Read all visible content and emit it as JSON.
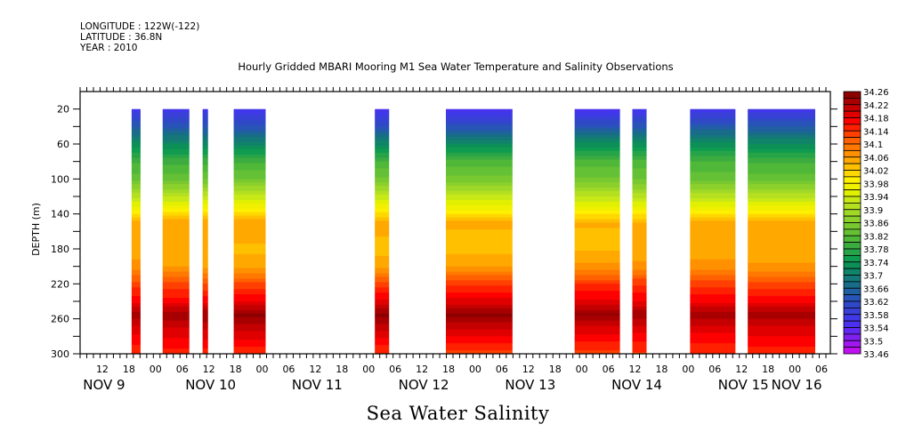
{
  "header": {
    "longitude": "LONGITUDE : 122W(-122)",
    "latitude": "LATITUDE : 36.8N",
    "year": "YEAR : 2010"
  },
  "chart_data": {
    "type": "heatmap",
    "title": "Hourly Gridded MBARI Mooring M1 Sea Water Temperature and Salinity Observations",
    "xlabel": "Sea Water Salinity",
    "ylabel": "DEPTH (m)",
    "x_unit": "hours since Nov 9 2010 00:00",
    "xlim": [
      7,
      176
    ],
    "ylim": [
      300,
      0
    ],
    "y_ticks": [
      20,
      60,
      100,
      140,
      180,
      220,
      260,
      300
    ],
    "x_hour_ticks": [
      {
        "hour": 12,
        "label": "12"
      },
      {
        "hour": 18,
        "label": "18"
      },
      {
        "hour": 24,
        "label": "00"
      },
      {
        "hour": 30,
        "label": "06"
      },
      {
        "hour": 36,
        "label": "12"
      },
      {
        "hour": 42,
        "label": "18"
      },
      {
        "hour": 48,
        "label": "00"
      },
      {
        "hour": 54,
        "label": "06"
      },
      {
        "hour": 60,
        "label": "12"
      },
      {
        "hour": 66,
        "label": "18"
      },
      {
        "hour": 72,
        "label": "00"
      },
      {
        "hour": 78,
        "label": "06"
      },
      {
        "hour": 84,
        "label": "12"
      },
      {
        "hour": 90,
        "label": "18"
      },
      {
        "hour": 96,
        "label": "00"
      },
      {
        "hour": 102,
        "label": "06"
      },
      {
        "hour": 108,
        "label": "12"
      },
      {
        "hour": 114,
        "label": "18"
      },
      {
        "hour": 120,
        "label": "00"
      },
      {
        "hour": 126,
        "label": "06"
      },
      {
        "hour": 132,
        "label": "12"
      },
      {
        "hour": 138,
        "label": "18"
      },
      {
        "hour": 144,
        "label": "00"
      },
      {
        "hour": 150,
        "label": "06"
      },
      {
        "hour": 156,
        "label": "12"
      },
      {
        "hour": 162,
        "label": "18"
      },
      {
        "hour": 168,
        "label": "00"
      },
      {
        "hour": 174,
        "label": "06"
      }
    ],
    "x_day_labels": [
      {
        "hour": 12,
        "label": "NOV  9"
      },
      {
        "hour": 36,
        "label": "NOV 10"
      },
      {
        "hour": 60,
        "label": "NOV 11"
      },
      {
        "hour": 84,
        "label": "NOV 12"
      },
      {
        "hour": 108,
        "label": "NOV 13"
      },
      {
        "hour": 132,
        "label": "NOV 14"
      },
      {
        "hour": 156,
        "label": "NOV 15"
      },
      {
        "hour": 168,
        "label": "NOV 16"
      }
    ],
    "data_depth_range": [
      20,
      300
    ],
    "observation_periods": [
      {
        "start_hour": 18.6,
        "end_hour": 20.6
      },
      {
        "start_hour": 25.6,
        "end_hour": 31.6
      },
      {
        "start_hour": 34.6,
        "end_hour": 35.8
      },
      {
        "start_hour": 41.6,
        "end_hour": 48.8
      },
      {
        "start_hour": 73.4,
        "end_hour": 76.6
      },
      {
        "start_hour": 89.4,
        "end_hour": 104.4
      },
      {
        "start_hour": 118.4,
        "end_hour": 128.6
      },
      {
        "start_hour": 131.4,
        "end_hour": 134.6
      },
      {
        "start_hour": 144.4,
        "end_hour": 154.6
      },
      {
        "start_hour": 157.4,
        "end_hour": 172.6
      }
    ],
    "salinity_profile": [
      {
        "depth": 20,
        "value": 33.56
      },
      {
        "depth": 40,
        "value": 33.63
      },
      {
        "depth": 60,
        "value": 33.72
      },
      {
        "depth": 80,
        "value": 33.8
      },
      {
        "depth": 100,
        "value": 33.84
      },
      {
        "depth": 120,
        "value": 33.92
      },
      {
        "depth": 135,
        "value": 33.98
      },
      {
        "depth": 150,
        "value": 34.05
      },
      {
        "depth": 180,
        "value": 34.04
      },
      {
        "depth": 200,
        "value": 34.06
      },
      {
        "depth": 220,
        "value": 34.13
      },
      {
        "depth": 240,
        "value": 34.18
      },
      {
        "depth": 255,
        "value": 34.24
      },
      {
        "depth": 270,
        "value": 34.2
      },
      {
        "depth": 290,
        "value": 34.16
      },
      {
        "depth": 300,
        "value": 34.14
      }
    ],
    "colorbar": {
      "min": 33.46,
      "max": 34.26,
      "step": 0.02,
      "labels": [
        "34.26",
        "34.22",
        "34.18",
        "34.14",
        "34.1",
        "34.06",
        "34.02",
        "33.98",
        "33.94",
        "33.9",
        "33.86",
        "33.82",
        "33.78",
        "33.74",
        "33.7",
        "33.66",
        "33.62",
        "33.58",
        "33.54",
        "33.5",
        "33.46"
      ],
      "colors": [
        "#8c0000",
        "#a80000",
        "#c40000",
        "#e00000",
        "#ff0000",
        "#ff2000",
        "#ff4000",
        "#ff6000",
        "#ff7800",
        "#ff9000",
        "#ffa800",
        "#ffc000",
        "#ffd800",
        "#fff000",
        "#f0f000",
        "#e0f000",
        "#c8e818",
        "#b4e020",
        "#a0d828",
        "#8cd02c",
        "#78c830",
        "#64c034",
        "#50b838",
        "#3cac40",
        "#28a448",
        "#109c50",
        "#0c9058",
        "#108468",
        "#147878",
        "#186c88",
        "#2060a0",
        "#2854b8",
        "#3048c8",
        "#3840d8",
        "#4038e8",
        "#4c30f0",
        "#6028f0",
        "#8020f0",
        "#a018f0",
        "#c010f0"
      ]
    }
  }
}
